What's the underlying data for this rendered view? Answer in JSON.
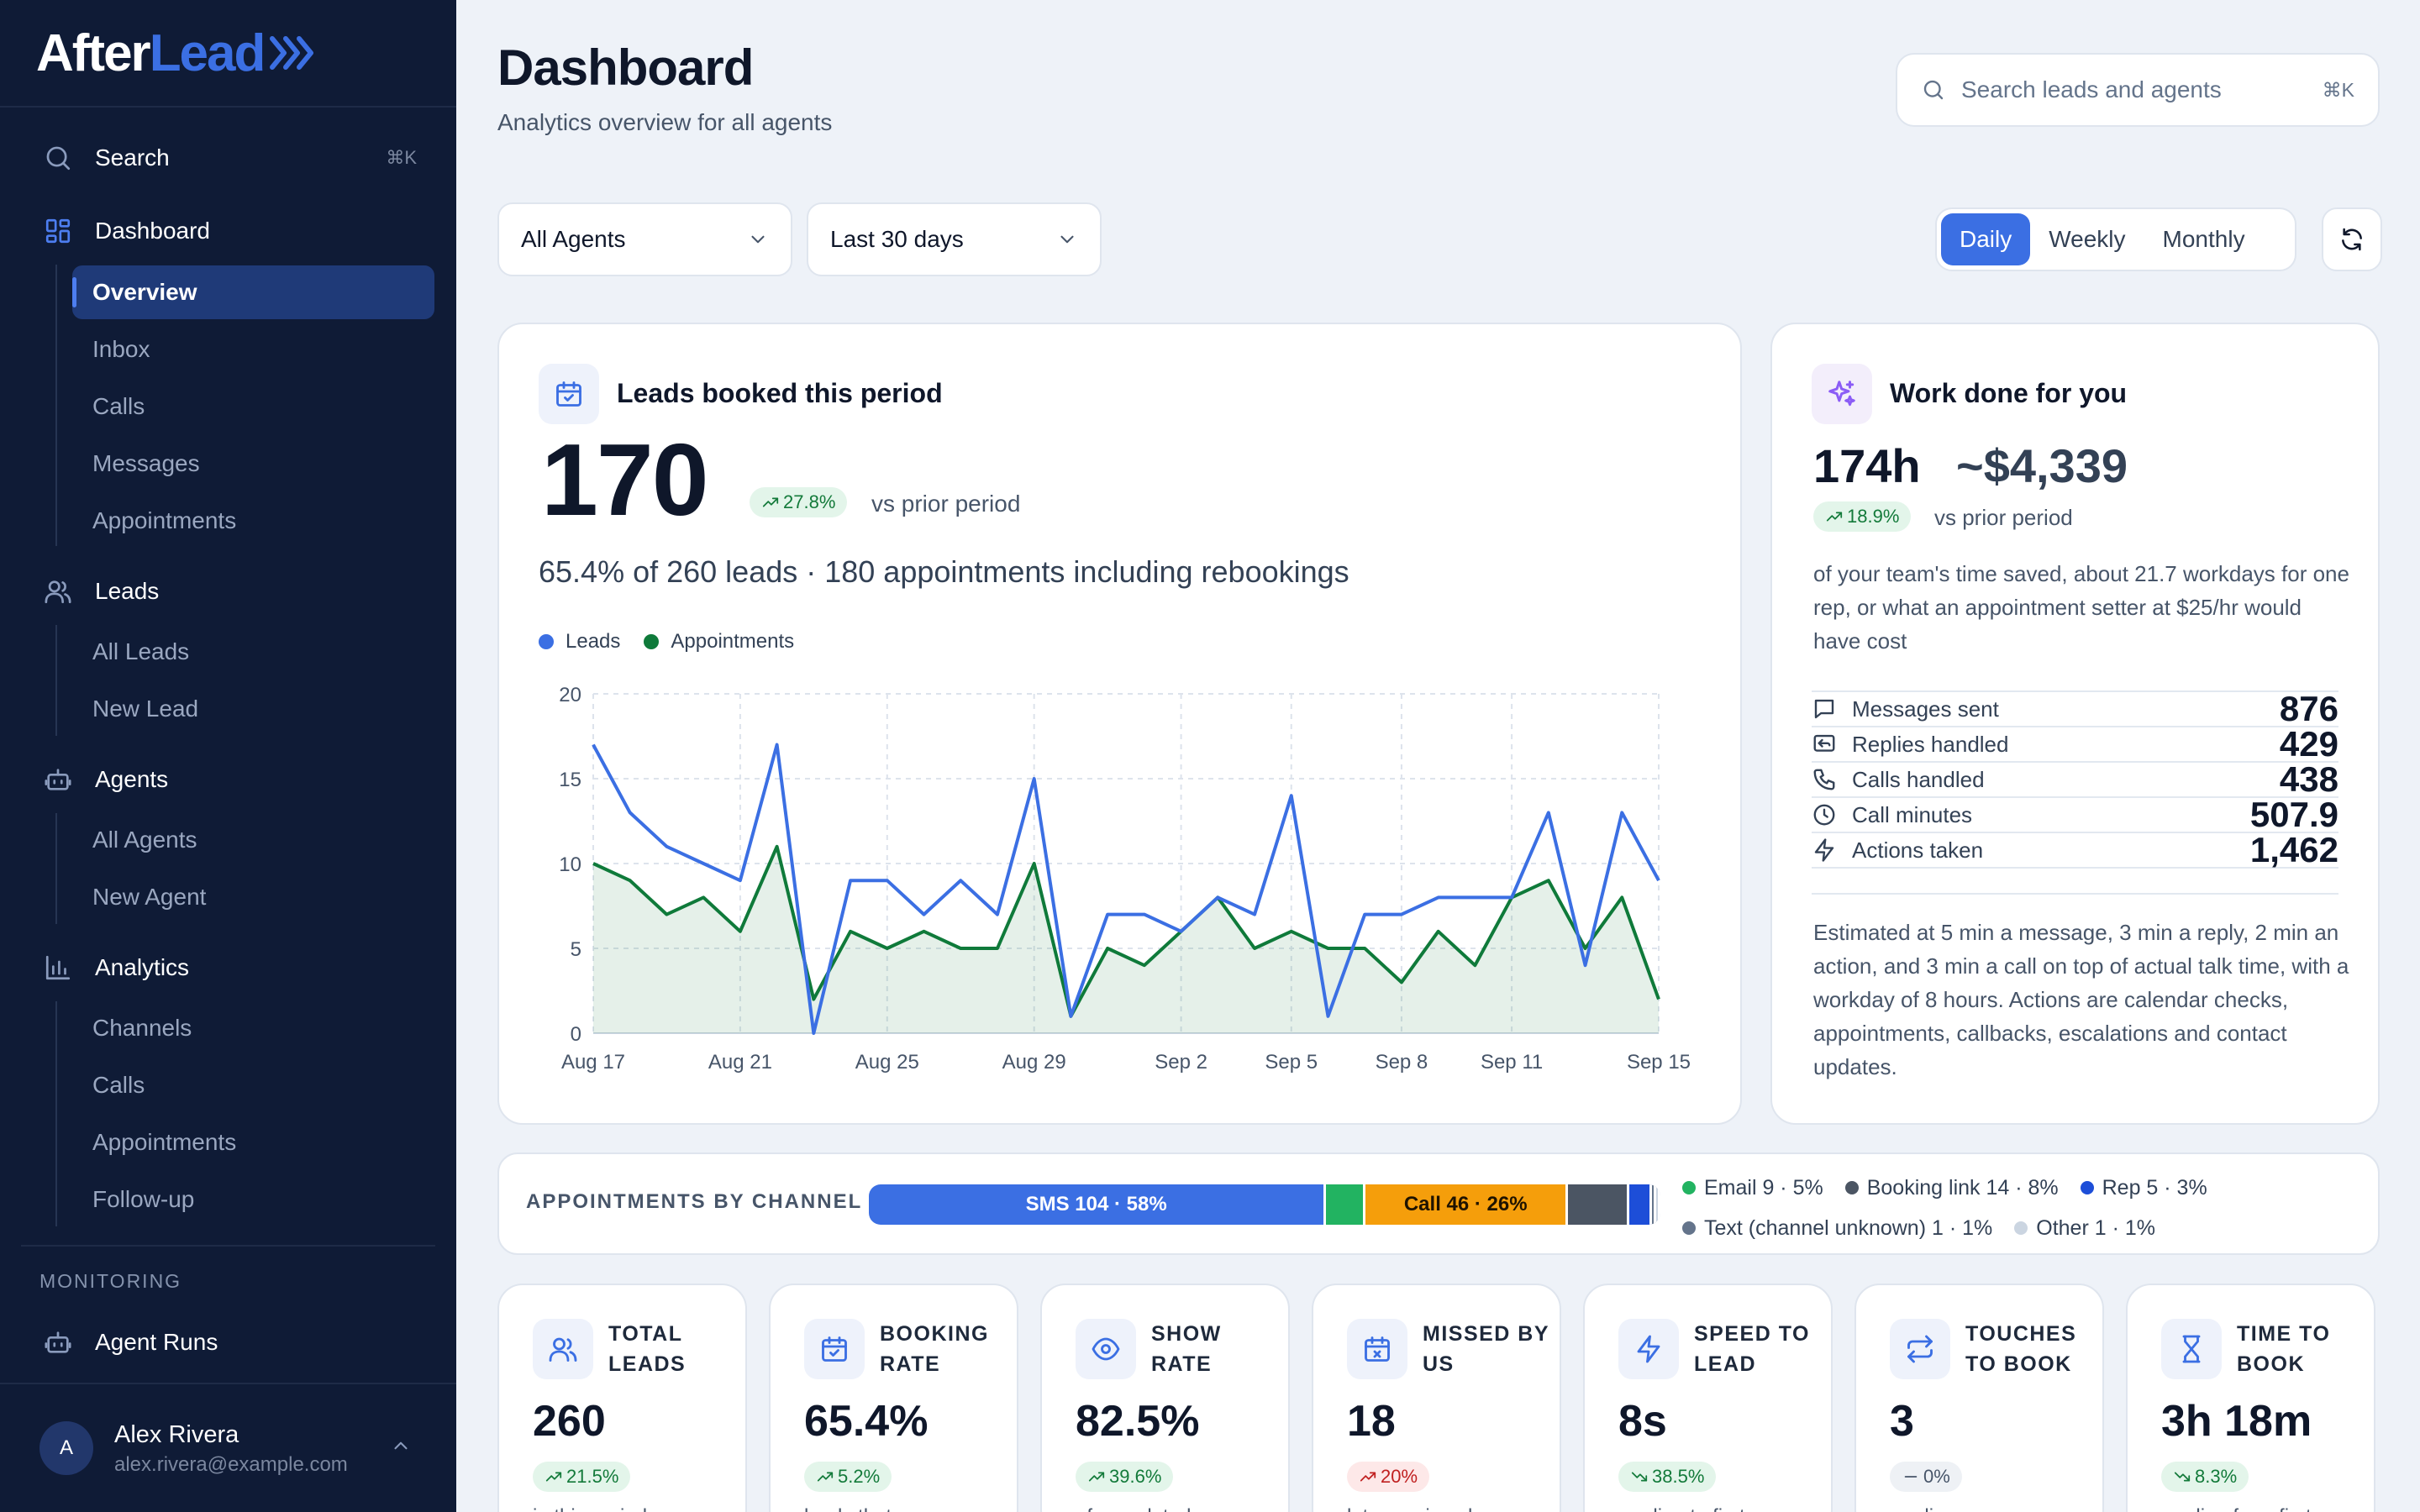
{
  "sidebar": {
    "logo": {
      "part1": "After",
      "part2": "Lead"
    },
    "search_label": "Search",
    "search_kbd": "⌘K",
    "dashboard_label": "Dashboard",
    "dashboard_items": [
      "Overview",
      "Inbox",
      "Calls",
      "Messages",
      "Appointments"
    ],
    "leads_label": "Leads",
    "leads_items": [
      "All Leads",
      "New Lead"
    ],
    "agents_label": "Agents",
    "agents_items": [
      "All Agents",
      "New Agent"
    ],
    "analytics_label": "Analytics",
    "analytics_items": [
      "Channels",
      "Calls",
      "Appointments",
      "Follow-up"
    ],
    "monitoring_label": "MONITORING",
    "agent_runs_label": "Agent Runs",
    "user": {
      "initial": "A",
      "name": "Alex Rivera",
      "email": "alex.rivera@example.com"
    }
  },
  "header": {
    "title": "Dashboard",
    "subtitle": "Analytics overview for all agents",
    "search_placeholder": "Search leads and agents",
    "search_kbd": "⌘K"
  },
  "filters": {
    "agent": "All Agents",
    "range": "Last 30 days",
    "granularity": [
      "Daily",
      "Weekly",
      "Monthly"
    ],
    "granularity_selected": "Daily"
  },
  "leads_card": {
    "title": "Leads booked this period",
    "value": "170",
    "change": "27.8%",
    "change_suffix": "vs prior period",
    "summary": "65.4% of 260 leads · 180 appointments including rebookings"
  },
  "chart_data": {
    "type": "line",
    "title": "",
    "xlabel": "",
    "ylabel": "",
    "ylim": [
      0,
      20
    ],
    "yticks": [
      0,
      5,
      10,
      15,
      20
    ],
    "x_tick_labels": [
      "Aug 17",
      "Aug 21",
      "Aug 25",
      "Aug 29",
      "Sep 2",
      "Sep 5",
      "Sep 8",
      "Sep 11",
      "Sep 15"
    ],
    "x_tick_index": [
      0,
      4,
      8,
      12,
      16,
      19,
      22,
      25,
      29
    ],
    "grid": true,
    "legend": "top-left",
    "series": [
      {
        "name": "Leads",
        "color": "#3b6fe3",
        "values": [
          17,
          13,
          11,
          10,
          9,
          17,
          0,
          9,
          9,
          7,
          9,
          7,
          15,
          1,
          7,
          7,
          6,
          8,
          7,
          14,
          1,
          7,
          7,
          8,
          8,
          8,
          13,
          4,
          13,
          9
        ]
      },
      {
        "name": "Appointments",
        "color": "#0f7a3a",
        "values": [
          10,
          9,
          7,
          8,
          6,
          11,
          2,
          6,
          5,
          6,
          5,
          5,
          10,
          1,
          5,
          4,
          6,
          8,
          5,
          6,
          5,
          5,
          3,
          6,
          4,
          8,
          9,
          5,
          8,
          2
        ]
      }
    ]
  },
  "work_card": {
    "title": "Work done for you",
    "time": "174h",
    "money": "~$4,339",
    "change": "18.9%",
    "change_suffix": "vs prior period",
    "description": "of your team's time saved, about 21.7 workdays for one rep, or what an appointment setter at $25/hr would have cost",
    "stats": [
      {
        "label": "Messages sent",
        "value": "876",
        "icon": "message-icon"
      },
      {
        "label": "Replies handled",
        "value": "429",
        "icon": "reply-icon"
      },
      {
        "label": "Calls handled",
        "value": "438",
        "icon": "phone-icon"
      },
      {
        "label": "Call minutes",
        "value": "507.9",
        "icon": "clock-icon"
      },
      {
        "label": "Actions taken",
        "value": "1,462",
        "icon": "bolt-icon"
      }
    ],
    "footnote": "Estimated at 5 min a message, 3 min a reply, 2 min an action, and 3 min a call on top of actual talk time, with a workday of 8 hours. Actions are calendar checks, appointments, callbacks, escalations and contact updates."
  },
  "channels": {
    "label": "APPOINTMENTS BY CHANNEL",
    "segments": [
      {
        "name": "SMS",
        "count": 104,
        "pct": 58,
        "text": "SMS 104 · 58%",
        "color": "#3b6fe3",
        "textcolor": "#ffffff"
      },
      {
        "name": "Email",
        "count": 9,
        "pct": 5,
        "text": "",
        "color": "#22b361",
        "textcolor": "#ffffff"
      },
      {
        "name": "Call",
        "count": 46,
        "pct": 26,
        "text": "Call 46 · 26%",
        "color": "#f59e0b",
        "textcolor": "#1f1300"
      },
      {
        "name": "Booking link",
        "count": 14,
        "pct": 8,
        "text": "",
        "color": "#4b5563",
        "textcolor": "#ffffff"
      },
      {
        "name": "Rep",
        "count": 5,
        "pct": 3,
        "text": "",
        "color": "#1d4ed8",
        "textcolor": "#ffffff"
      },
      {
        "name": "Text (channel unknown)",
        "count": 1,
        "pct": 1,
        "text": "",
        "color": "#64748b",
        "textcolor": "#ffffff"
      },
      {
        "name": "Other",
        "count": 1,
        "pct": 1,
        "text": "",
        "color": "#cbd5e1",
        "textcolor": "#ffffff"
      }
    ],
    "legend_row1": [
      {
        "text": "Email 9 · 5%",
        "color": "#22b361"
      },
      {
        "text": "Booking link 14 · 8%",
        "color": "#4b5563"
      },
      {
        "text": "Rep 5 · 3%",
        "color": "#1d4ed8"
      }
    ],
    "legend_row2": [
      {
        "text": "Text (channel unknown) 1 · 1%",
        "color": "#64748b"
      },
      {
        "text": "Other 1 · 1%",
        "color": "#cbd5e1"
      }
    ]
  },
  "kpis": [
    {
      "title": "TOTAL LEADS",
      "value": "260",
      "change": "21.5%",
      "trend": "up",
      "desc": "in this period",
      "icon": "users-icon"
    },
    {
      "title": "BOOKING RATE",
      "value": "65.4%",
      "change": "5.2%",
      "trend": "up",
      "desc": "leads that...",
      "icon": "calendar-check-icon"
    },
    {
      "title": "SHOW RATE",
      "value": "82.5%",
      "change": "39.6%",
      "trend": "up",
      "desc": "of completed...",
      "icon": "eye-icon"
    },
    {
      "title": "MISSED BY US",
      "value": "18",
      "change": "20%",
      "trend": "up-bad",
      "desc": "late or missed...",
      "icon": "calendar-x-icon"
    },
    {
      "title": "SPEED TO LEAD",
      "value": "8s",
      "change": "38.5%",
      "trend": "down-good",
      "desc": "median to first...",
      "icon": "bolt-icon"
    },
    {
      "title": "TOUCHES TO BOOK",
      "value": "3",
      "change": "0%",
      "trend": "flat",
      "desc": "median",
      "icon": "repeat-icon"
    },
    {
      "title": "TIME TO BOOK",
      "value": "3h 18m",
      "change": "8.3%",
      "trend": "down-good",
      "desc": "median from first...",
      "icon": "hourglass-icon"
    }
  ]
}
